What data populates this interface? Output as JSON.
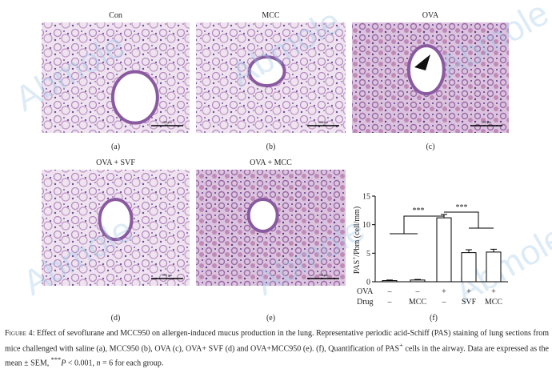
{
  "watermark": "Abmole",
  "panels": [
    {
      "title": "Con",
      "label": "(a)",
      "scale_label": "200 μm"
    },
    {
      "title": "MCC",
      "label": "(b)",
      "scale_label": "200 μm"
    },
    {
      "title": "OVA",
      "label": "(c)",
      "scale_label": "200 μm"
    },
    {
      "title": "OVA + SVF",
      "label": "(d)",
      "scale_label": "200 μm"
    },
    {
      "title": "OVA + MCC",
      "label": "(e)",
      "scale_label": "200 μm"
    }
  ],
  "chart": {
    "type": "bar",
    "label": "(f)",
    "y_label_parts": [
      "PAS",
      "+",
      "/Pbm (cell/mm)"
    ],
    "ylim": [
      0,
      15
    ],
    "yticks": [
      0,
      5,
      10,
      15
    ],
    "values": [
      0.2,
      0.3,
      11.2,
      5.1,
      5.2
    ],
    "errors": [
      0.1,
      0.1,
      0.6,
      0.5,
      0.5
    ],
    "row_labels": [
      "OVA",
      "Drug"
    ],
    "rows": [
      [
        "–",
        "–",
        "+",
        "+",
        "+"
      ],
      [
        "–",
        "MCC",
        "–",
        "SVF",
        "MCC"
      ]
    ],
    "significance": [
      "***",
      "***"
    ]
  },
  "caption": {
    "label": "Figure 4:",
    "parts": [
      "Effect of sevoflurane and MCC950 on allergen-induced mucus production in the lung. Representative periodic acid-Schiff (PAS) staining of lung sections from mice challenged with saline (a), MCC950 (b), OVA (c), OVA+ SVF (d) and OVA+MCC950 (e). (f), Quantification of PAS",
      "+",
      " cells in the airway. Data are expressed as the mean ± SEM, ",
      "***",
      "P",
      " < 0.001, ",
      "n",
      " = 6 for each group."
    ]
  }
}
